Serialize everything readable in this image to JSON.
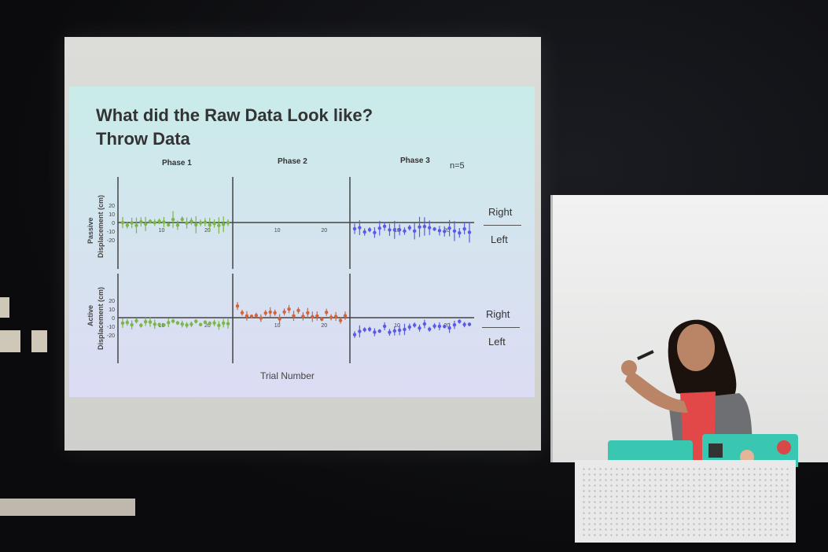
{
  "slide": {
    "title_line1": "What did the Raw Data Look like?",
    "title_line2": "Throw Data",
    "phase1": "Phase 1",
    "phase2": "Phase 2",
    "phase3": "Phase 3",
    "n_label": "n=5",
    "passive_label": "Passive",
    "active_label": "Active",
    "ylabel": "Displacement (cm)",
    "right_label": "Right",
    "left_label": "Left",
    "xlabel": "Trial Number",
    "yticks": [
      "20",
      "10",
      "0",
      "-10",
      "-20"
    ],
    "xticks_p1": [
      "10",
      "20"
    ],
    "xticks_p2": [
      "10",
      "20"
    ],
    "xticks_p3": [
      "10",
      "20"
    ]
  },
  "colors": {
    "phase1": "#7ab648",
    "phase2": "#d2643c",
    "phase3": "#5a5ae6",
    "screen_top": "#c9ece9",
    "screen_bottom": "#dcdcf4",
    "laptop": "#39c7b1"
  },
  "icons": [
    "laptop-icon",
    "sticker-icon"
  ]
}
